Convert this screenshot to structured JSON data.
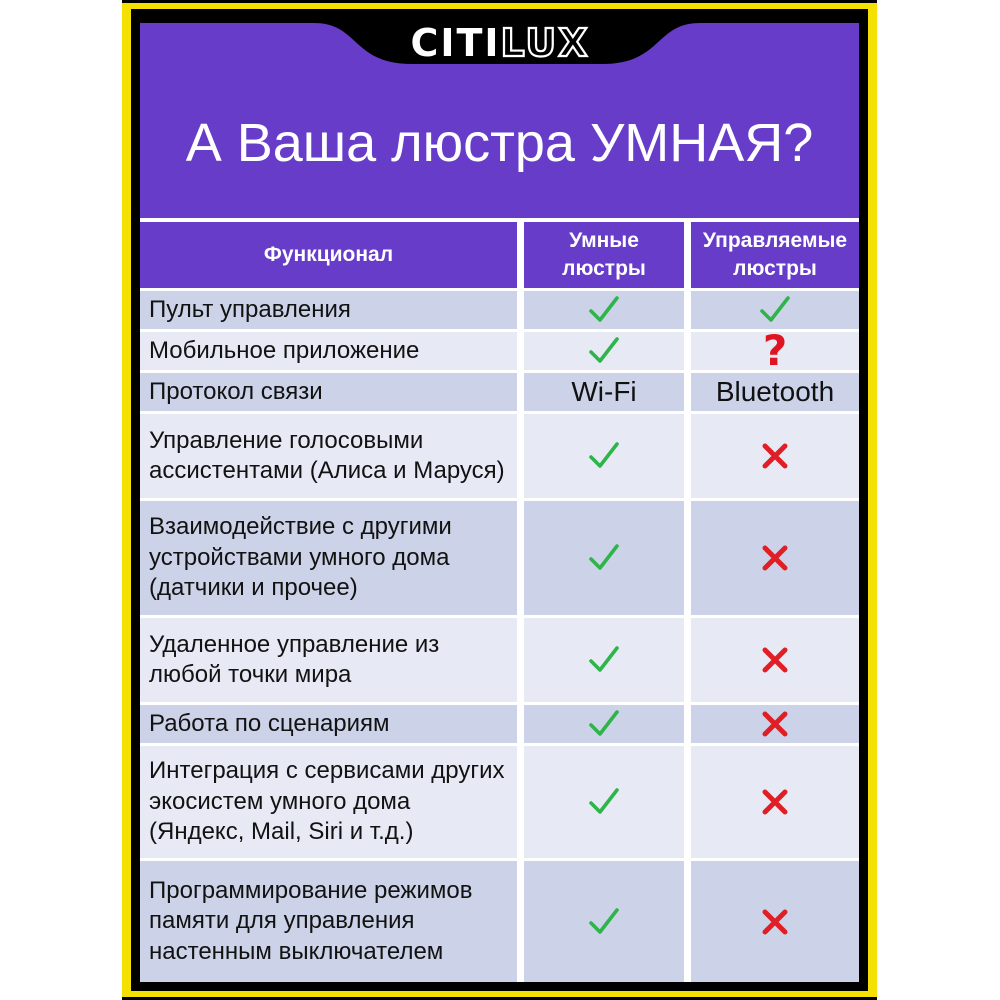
{
  "logo": {
    "solid": "CITI",
    "outline": "LUX"
  },
  "title": "А Ваша люстра УМНАЯ?",
  "table": {
    "headers": {
      "feature": "Функционал",
      "smart": "Умные\nлюстры",
      "controlled": "Управляемые\nлюстры"
    },
    "rows": [
      {
        "label": "Пульт управления",
        "smart": "check",
        "controlled": "check"
      },
      {
        "label": "Мобильное приложение",
        "smart": "check",
        "controlled": "question"
      },
      {
        "label": "Протокол связи",
        "smart": "Wi-Fi",
        "controlled": "Bluetooth"
      },
      {
        "label": "Управление голосовыми\nассистентами (Алиса и Маруся)",
        "smart": "check",
        "controlled": "cross"
      },
      {
        "label": "Взаимодействие с другими\nустройствами умного дома\n(датчики и прочее)",
        "smart": "check",
        "controlled": "cross"
      },
      {
        "label": "Удаленное управление из\nлюбой точки мира",
        "smart": "check",
        "controlled": "cross"
      },
      {
        "label": "Работа по сценариям",
        "smart": "check",
        "controlled": "cross"
      },
      {
        "label": "Интеграция с сервисами других\nэкосистем умного дома\n(Яндекс, Mail, Siri и т.д.)",
        "smart": "check",
        "controlled": "cross"
      },
      {
        "label": "Программирование режимов\nпамяти для управления\nнастенным выключателем",
        "smart": "check",
        "controlled": "cross"
      }
    ]
  },
  "colors": {
    "purple": "#663CC9",
    "yellow_border": "#F5E003",
    "row_dark": "#CCD3E8",
    "row_light": "#E7EAF5",
    "check_green": "#2FB44A",
    "cross_red": "#E01E25",
    "question_red": "#E01420"
  }
}
